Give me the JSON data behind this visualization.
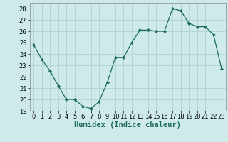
{
  "x": [
    0,
    1,
    2,
    3,
    4,
    5,
    6,
    7,
    8,
    9,
    10,
    11,
    12,
    13,
    14,
    15,
    16,
    17,
    18,
    19,
    20,
    21,
    22,
    23
  ],
  "y": [
    24.8,
    23.5,
    22.5,
    21.2,
    20.0,
    20.0,
    19.4,
    19.2,
    19.8,
    21.5,
    23.7,
    23.7,
    25.0,
    26.1,
    26.1,
    26.0,
    26.0,
    28.0,
    27.8,
    26.7,
    26.4,
    26.4,
    25.7,
    22.7
  ],
  "line_color": "#1a6b5a",
  "marker": "D",
  "marker_size": 2.0,
  "bg_color": "#ceeaea",
  "grid_color": "#aacece",
  "xlabel": "Humidex (Indice chaleur)",
  "xlim": [
    -0.5,
    23.5
  ],
  "ylim": [
    19,
    28.5
  ],
  "yticks": [
    19,
    20,
    21,
    22,
    23,
    24,
    25,
    26,
    27,
    28
  ],
  "xticks": [
    0,
    1,
    2,
    3,
    4,
    5,
    6,
    7,
    8,
    9,
    10,
    11,
    12,
    13,
    14,
    15,
    16,
    17,
    18,
    19,
    20,
    21,
    22,
    23
  ],
  "label_fontsize": 7.5,
  "tick_fontsize": 6.0
}
